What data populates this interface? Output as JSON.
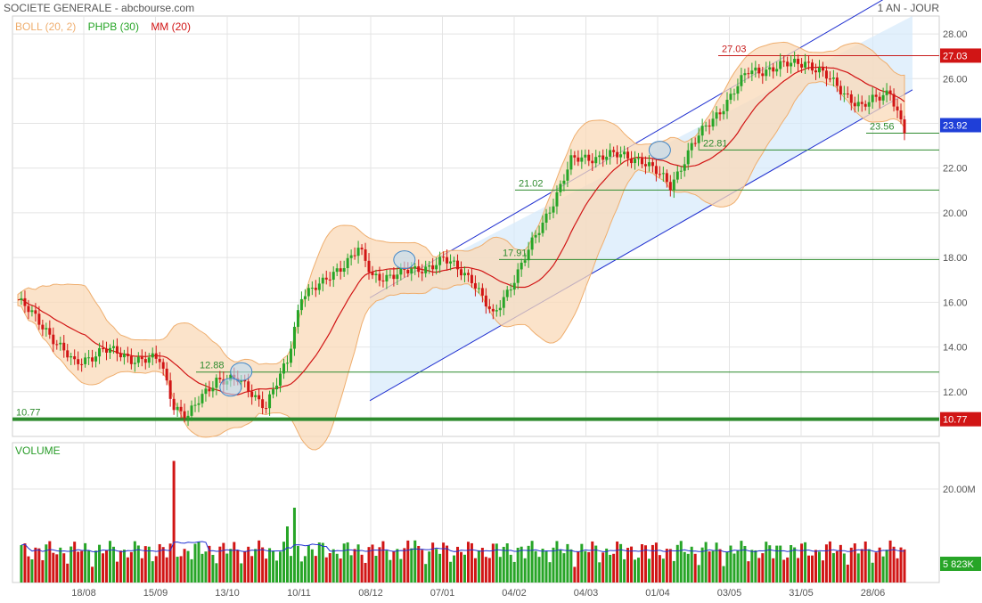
{
  "header": {
    "title": "SOCIETE GENERALE - abcbourse.com",
    "period": "1 AN - JOUR"
  },
  "legend": {
    "boll": "BOLL (20, 2)",
    "phpb": "PHPB (30)",
    "mm": "MM (20)"
  },
  "volume_label": "VOLUME",
  "colors": {
    "up": "#27a527",
    "down": "#d11515",
    "boll_fill": "#f9d9b8",
    "boll_line": "#efae6e",
    "mm": "#d11515",
    "channel": "#1f2fd0",
    "channel_fill": "#d6e9fb",
    "support": "#2e8b2e",
    "resistance": "#c81c1c",
    "volume_avg": "#2232d2"
  },
  "chart_data": {
    "type": "candlestick",
    "ylim": [
      10.0,
      28.8
    ],
    "y_ticks": [
      "12.00",
      "14.00",
      "16.00",
      "18.00",
      "20.00",
      "22.00",
      "24.00",
      "26.00",
      "28.00"
    ],
    "x_ticks": [
      "18/08",
      "15/09",
      "13/10",
      "10/11",
      "08/12",
      "07/01",
      "04/02",
      "04/03",
      "01/04",
      "03/05",
      "31/05",
      "28/06"
    ],
    "close_points": [
      {
        "x": 0,
        "y": 16.1
      },
      {
        "x": 8,
        "y": 14.8
      },
      {
        "x": 16,
        "y": 13.2
      },
      {
        "x": 24,
        "y": 13.9
      },
      {
        "x": 32,
        "y": 13.5
      },
      {
        "x": 40,
        "y": 13.4
      },
      {
        "x": 44,
        "y": 11.4
      },
      {
        "x": 48,
        "y": 10.9
      },
      {
        "x": 56,
        "y": 12.6
      },
      {
        "x": 62,
        "y": 12.5
      },
      {
        "x": 70,
        "y": 11.4
      },
      {
        "x": 76,
        "y": 13.3
      },
      {
        "x": 80,
        "y": 16.4
      },
      {
        "x": 86,
        "y": 16.8
      },
      {
        "x": 96,
        "y": 18.4
      },
      {
        "x": 100,
        "y": 17.1
      },
      {
        "x": 112,
        "y": 17.4
      },
      {
        "x": 120,
        "y": 17.9
      },
      {
        "x": 128,
        "y": 17.1
      },
      {
        "x": 134,
        "y": 15.3
      },
      {
        "x": 142,
        "y": 17.7
      },
      {
        "x": 148,
        "y": 19.5
      },
      {
        "x": 156,
        "y": 22.3
      },
      {
        "x": 166,
        "y": 22.6
      },
      {
        "x": 176,
        "y": 22.4
      },
      {
        "x": 184,
        "y": 21.2
      },
      {
        "x": 190,
        "y": 23.0
      },
      {
        "x": 198,
        "y": 24.6
      },
      {
        "x": 206,
        "y": 26.3
      },
      {
        "x": 214,
        "y": 26.5
      },
      {
        "x": 222,
        "y": 26.8
      },
      {
        "x": 230,
        "y": 25.8
      },
      {
        "x": 238,
        "y": 24.7
      },
      {
        "x": 246,
        "y": 25.5
      },
      {
        "x": 250,
        "y": 23.56
      }
    ],
    "levels": [
      {
        "value": 27.03,
        "label": "27.03",
        "kind": "resistance"
      },
      {
        "value": 22.81,
        "label": "22.81",
        "kind": "support"
      },
      {
        "value": 21.02,
        "label": "21.02",
        "kind": "support"
      },
      {
        "value": 17.91,
        "label": "17.91",
        "kind": "support"
      },
      {
        "value": 12.88,
        "label": "12.88",
        "kind": "support"
      },
      {
        "value": 10.77,
        "label": "10.77",
        "kind": "support"
      },
      {
        "value": 23.56,
        "label": "23.56",
        "kind": "support"
      }
    ],
    "price_tags": [
      {
        "value": 27.03,
        "label": "27.03",
        "color": "#d11515"
      },
      {
        "value": 23.92,
        "label": "23.92",
        "color": "#1f3fd8"
      },
      {
        "value": 10.77,
        "label": "10.77",
        "color": "#d11515"
      }
    ],
    "volume": {
      "tick_label": "20.00M",
      "last_label": "5 823K"
    }
  }
}
